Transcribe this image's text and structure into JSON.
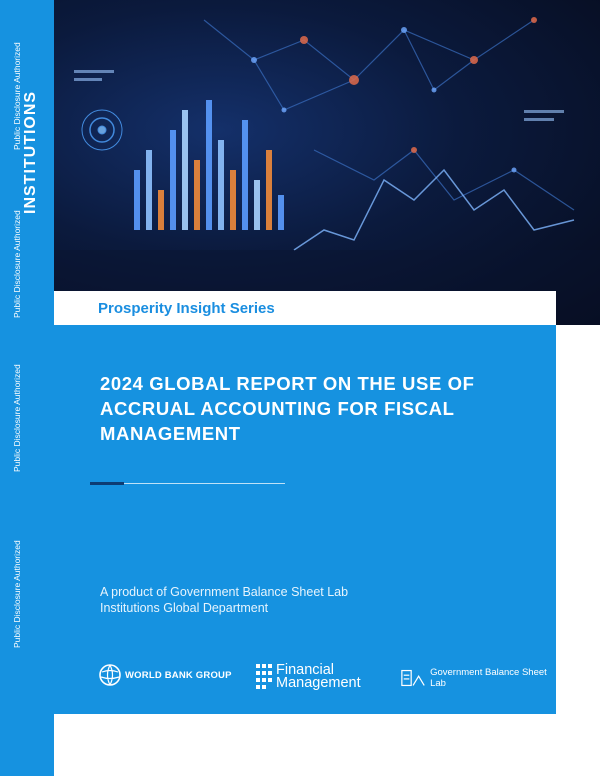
{
  "spine": {
    "disclosure_label": "Public Disclosure Authorized",
    "title": "INSTITUTIONS"
  },
  "series": {
    "label": "Prosperity Insight Series"
  },
  "report": {
    "title": "2024 GLOBAL REPORT ON THE USE OF ACCRUAL ACCOUNTING FOR FISCAL MANAGEMENT",
    "byline_line1": "A product of Government Balance Sheet Lab",
    "byline_line2": "Institutions Global Department"
  },
  "logos": {
    "world_bank": "WORLD BANK GROUP",
    "financial_management_line1": "Financial",
    "financial_management_line2": "Management",
    "gbsl": "Government Balance Sheet Lab"
  },
  "colors": {
    "brand_blue": "#1692e0",
    "hero_dark": "#0b1a3d",
    "accent_orange": "#f08a3a"
  }
}
